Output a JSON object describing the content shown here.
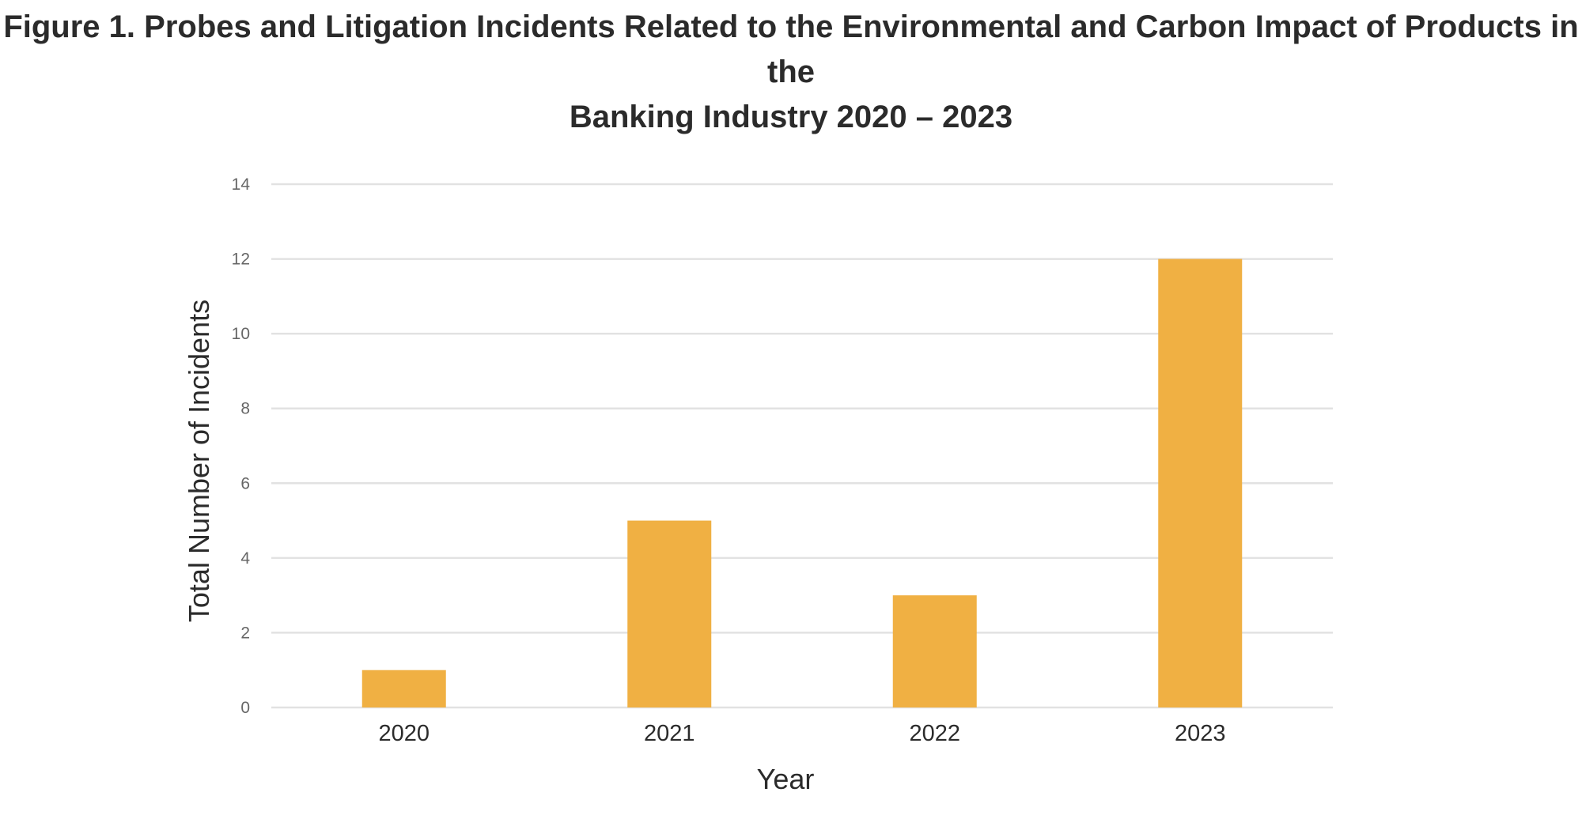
{
  "figure": {
    "title_line1": "Figure 1. Probes and Litigation Incidents Related to the Environmental and Carbon Impact of Products in the",
    "title_line2": "Banking Industry 2020 – 2023"
  },
  "chart_data": {
    "type": "bar",
    "title": "Figure 1. Probes and Litigation Incidents Related to the Environmental and Carbon Impact of Products in the Banking Industry 2020 – 2023",
    "categories": [
      "2020",
      "2021",
      "2022",
      "2023"
    ],
    "values": [
      1,
      5,
      3,
      12
    ],
    "xlabel": "Year",
    "ylabel": "Total Number of Incidents",
    "ylim": [
      0,
      14
    ],
    "yticks": [
      0,
      2,
      4,
      6,
      8,
      10,
      12,
      14
    ],
    "grid": true,
    "legend": "none",
    "bar_color": "#F0B043",
    "grid_color": "#E2E2E2"
  }
}
